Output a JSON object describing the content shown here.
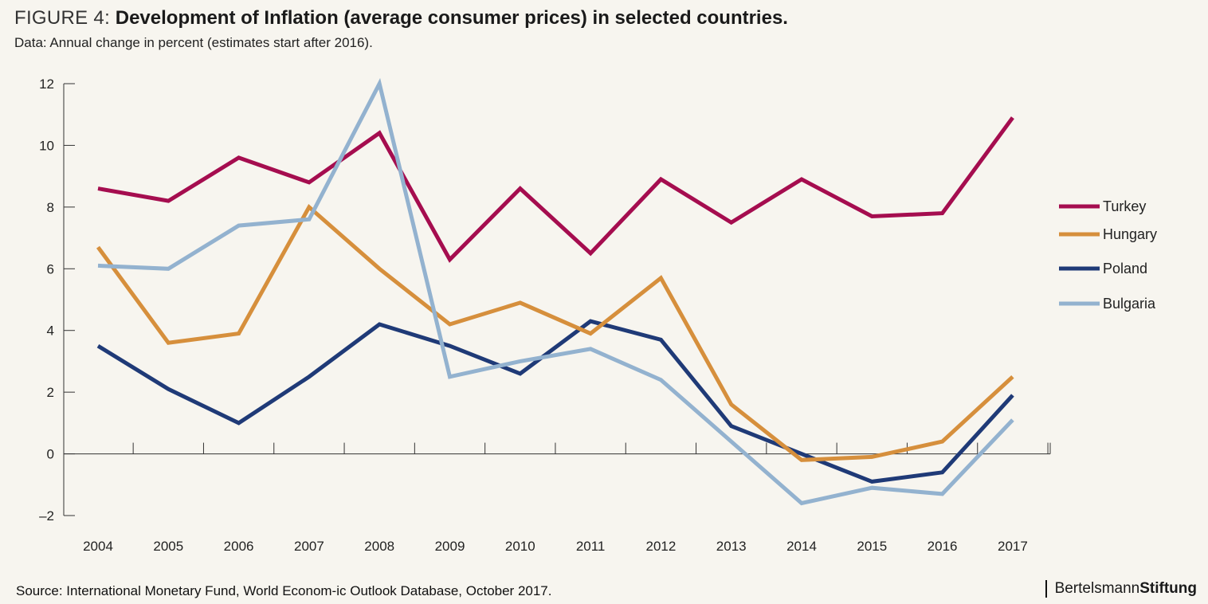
{
  "header": {
    "figure_prefix": "FIGURE 4:",
    "title": "Development of Inflation (average consumer prices) in selected countries.",
    "subtitle": "Data: Annual change in percent (estimates start after 2016)."
  },
  "footer": {
    "source": "Source: International Monetary Fund, World Econom-ic Outlook Database, October 2017.",
    "brand_regular": "Bertelsmann",
    "brand_bold": "Stiftung"
  },
  "chart_data": {
    "type": "line",
    "title": "Development of Inflation (average consumer prices) in selected countries.",
    "subtitle": "Data: Annual change in percent (estimates start after 2016).",
    "categories": [
      "2004",
      "2005",
      "2006",
      "2007",
      "2008",
      "2009",
      "2010",
      "2011",
      "2012",
      "2013",
      "2014",
      "2015",
      "2016",
      "2017"
    ],
    "ylim": [
      -2,
      12
    ],
    "yticks": [
      -2,
      0,
      2,
      4,
      6,
      8,
      10,
      12
    ],
    "ytick_labels": [
      "–2",
      "0",
      "2",
      "4",
      "6",
      "8",
      "10",
      "12"
    ],
    "grid": false,
    "legend_position": "right",
    "series": [
      {
        "name": "Turkey",
        "color": "#a50d4f",
        "values": [
          8.6,
          8.2,
          9.6,
          8.8,
          10.4,
          6.3,
          8.6,
          6.5,
          8.9,
          7.5,
          8.9,
          7.7,
          7.8,
          10.9
        ]
      },
      {
        "name": "Hungary",
        "color": "#d68f3c",
        "values": [
          6.7,
          3.6,
          3.9,
          8.0,
          6.0,
          4.2,
          4.9,
          3.9,
          5.7,
          1.6,
          -0.2,
          -0.1,
          0.4,
          2.5
        ]
      },
      {
        "name": "Poland",
        "color": "#1f3a77",
        "values": [
          3.5,
          2.1,
          1.0,
          2.5,
          4.2,
          3.5,
          2.6,
          4.3,
          3.7,
          0.9,
          0.0,
          -0.9,
          -0.6,
          1.9
        ]
      },
      {
        "name": "Bulgaria",
        "color": "#93b2cf",
        "values": [
          6.1,
          6.0,
          7.4,
          7.6,
          12.0,
          2.5,
          3.0,
          3.4,
          2.4,
          0.4,
          -1.6,
          -1.1,
          -1.3,
          1.1
        ]
      }
    ]
  }
}
